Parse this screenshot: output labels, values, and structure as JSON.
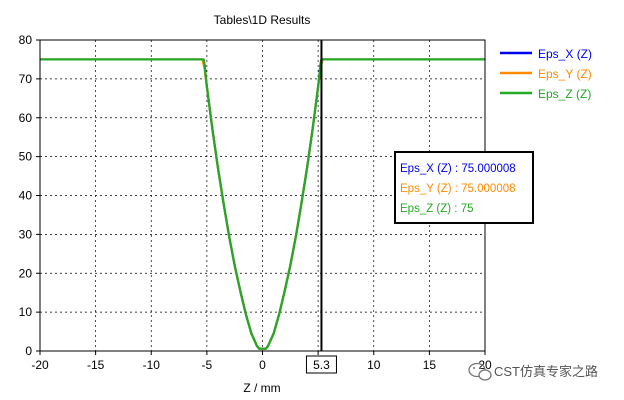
{
  "chart_data": {
    "type": "line",
    "title": "Tables\\1D Results",
    "xlabel": "Z / mm",
    "ylabel": "",
    "xlim": [
      -20,
      20
    ],
    "ylim": [
      0,
      80
    ],
    "xticks": [
      -20,
      -15,
      -10,
      -5,
      0,
      5,
      10,
      15,
      20
    ],
    "yticks": [
      0,
      10,
      20,
      30,
      40,
      50,
      60,
      70,
      80
    ],
    "grid": true,
    "legend_position": "right",
    "series": [
      {
        "name": "Eps_X (Z)",
        "color": "#0000ee",
        "x": [
          -20,
          -5.3,
          -5.2,
          -5.1,
          -5.0,
          -4.5,
          -4.0,
          -3.5,
          -3.0,
          -2.5,
          -2.0,
          -1.5,
          -1.0,
          -0.5,
          -0.3,
          0,
          0.3,
          0.5,
          1.0,
          1.5,
          2.0,
          2.5,
          3.0,
          3.5,
          4.0,
          4.5,
          5.0,
          5.1,
          5.2,
          5.3,
          20
        ],
        "y": [
          75,
          75,
          73.5,
          70.5,
          68,
          57,
          47,
          38,
          29.5,
          22,
          15.5,
          9.5,
          4.5,
          1.3,
          0.6,
          0.6,
          0.6,
          1.3,
          4.5,
          9.5,
          15.5,
          22,
          29.5,
          38,
          47,
          57,
          68,
          70.5,
          73.5,
          75,
          75
        ]
      },
      {
        "name": "Eps_Y (Z)",
        "color": "#ff8c00",
        "x": [
          -20,
          -5.4,
          -5.2,
          -5.1,
          -5.0,
          -4.5,
          -4.0,
          -3.5,
          -3.0,
          -2.5,
          -2.0,
          -1.5,
          -1.0,
          -0.5,
          -0.3,
          0,
          0.3,
          0.5,
          1.0,
          1.5,
          2.0,
          2.5,
          3.0,
          3.5,
          4.0,
          4.5,
          5.0,
          5.1,
          5.2,
          5.4,
          20
        ],
        "y": [
          75,
          75,
          72.5,
          70,
          68,
          57,
          47,
          38,
          29.5,
          22,
          15.5,
          9.5,
          4.5,
          1.3,
          0.6,
          0.6,
          0.6,
          1.3,
          4.5,
          9.5,
          15.5,
          22,
          29.5,
          38,
          47,
          57,
          68,
          70,
          72.5,
          75,
          75
        ]
      },
      {
        "name": "Eps_Z (Z)",
        "color": "#22aa22",
        "x": [
          -20,
          -5.3,
          -5.2,
          -5.1,
          -5.0,
          -4.5,
          -4.0,
          -3.5,
          -3.0,
          -2.5,
          -2.0,
          -1.5,
          -1.0,
          -0.5,
          -0.3,
          0,
          0.3,
          0.5,
          1.0,
          1.5,
          2.0,
          2.5,
          3.0,
          3.5,
          4.0,
          4.5,
          5.0,
          5.1,
          5.2,
          5.3,
          20
        ],
        "y": [
          75,
          75,
          73.5,
          70.5,
          68,
          57,
          47,
          38,
          29.5,
          22,
          15.5,
          9.5,
          4.5,
          1.3,
          0.6,
          0.6,
          0.6,
          1.3,
          4.5,
          9.5,
          15.5,
          22,
          29.5,
          38,
          47,
          57,
          68,
          70.5,
          73.5,
          75,
          75
        ]
      }
    ],
    "marker": {
      "x": 5.3,
      "label": "5.3"
    },
    "readout": [
      {
        "text": "Eps_X (Z) : 75.000008",
        "color": "#0000ee"
      },
      {
        "text": "Eps_Y (Z) : 75.000008",
        "color": "#ff8c00"
      },
      {
        "text": "Eps_Z (Z) : 75",
        "color": "#22aa22"
      }
    ]
  },
  "watermark": {
    "text": "CST仿真专家之路",
    "icon": "wechat-icon"
  }
}
